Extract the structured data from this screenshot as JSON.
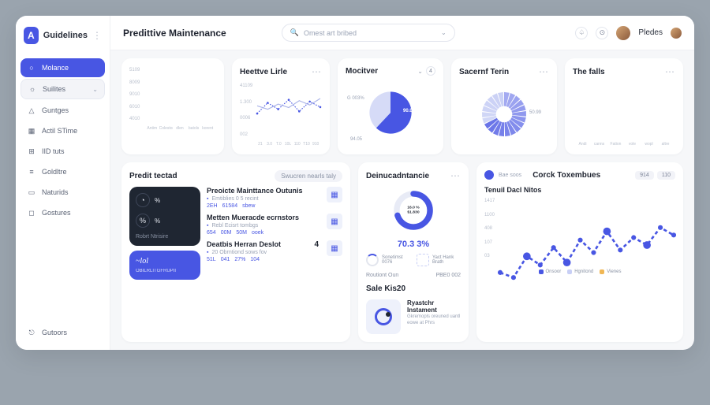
{
  "brand": {
    "name": "Guidelines",
    "logo_letter": "A"
  },
  "sidebar": {
    "items": [
      {
        "label": "Molance",
        "icon": "circle",
        "active": true
      },
      {
        "label": "Suilites",
        "icon": "sun",
        "sub": true,
        "chevron": true
      },
      {
        "label": "Guntges",
        "icon": "triangle"
      },
      {
        "label": "Actil STime",
        "icon": "calendar"
      },
      {
        "label": "IID tuts",
        "icon": "grid"
      },
      {
        "label": "Goldltre",
        "icon": "layers"
      },
      {
        "label": "Naturids",
        "icon": "doc"
      },
      {
        "label": "Gostures",
        "icon": "box"
      }
    ],
    "bottom": {
      "label": "Gutoors",
      "icon": "exit"
    }
  },
  "header": {
    "title": "Predittive Maintenance",
    "search_placeholder": "Omest art bribed",
    "user_name": "Pledes"
  },
  "row1": {
    "bar_card": {
      "y_ticks": [
        "5109",
        "8009",
        "9010",
        "6010",
        "4010"
      ],
      "x_labels": [
        "Antim",
        "Colestone",
        "dlen",
        "batols",
        "korent"
      ],
      "pairs": [
        {
          "a": 70,
          "b": 88
        },
        {
          "a": 42,
          "b": 95
        },
        {
          "a": 55,
          "b": 50
        },
        {
          "a": 62,
          "b": 78
        },
        {
          "a": 48,
          "b": 60
        }
      ],
      "color_a": "#c8cff5",
      "color_b": "#4856e3"
    },
    "line_card": {
      "title": "Heettve Lirle",
      "y_ticks": [
        "41109",
        "1.300",
        "0006",
        "002"
      ],
      "x_labels": [
        "21",
        "3.0",
        "T.0",
        "10L",
        "110",
        "T10",
        "910"
      ],
      "series1": [
        30,
        55,
        40,
        62,
        35,
        58,
        45
      ],
      "series2": [
        48,
        40,
        52,
        44,
        60,
        50,
        65
      ],
      "color1": "#4856e3",
      "color2": "#aab3e8"
    },
    "pie1": {
      "title": "Mocitver",
      "slices": [
        {
          "value": 62,
          "color": "#4856e3"
        },
        {
          "value": 38,
          "color": "#d6dbf7"
        }
      ],
      "labels": [
        "G 003%",
        "90.0%",
        "94.05"
      ]
    },
    "pie2": {
      "title": "Sacernf Terin",
      "segments": 22,
      "color_main": "#4856e3",
      "color_alt": "#c8cff5",
      "label": "50.99"
    },
    "bar2": {
      "title": "The falls",
      "x_labels": [
        "Andi",
        "canns",
        "Fation",
        "vole",
        "wopl",
        "altre"
      ],
      "pairs": [
        {
          "a": 85,
          "b": 55
        },
        {
          "a": 50,
          "b": 75
        },
        {
          "a": 40,
          "b": 30
        },
        {
          "a": 90,
          "b": 62
        },
        {
          "a": 58,
          "b": 48
        },
        {
          "a": 45,
          "b": 70
        }
      ],
      "color_a": "#4856e3",
      "color_b": "#c8cff5"
    }
  },
  "row2": {
    "predict": {
      "title": "Predit tectad",
      "pill": "Swucren nearls taly",
      "dark": {
        "rows": [
          {
            "icon": "gauge",
            "val": "%"
          },
          {
            "icon": "percent",
            "val": "%"
          }
        ],
        "sub": "Robrt Ntrisire"
      },
      "blue": {
        "handwrite": "~lol",
        "sub": "OBILRLITGFRUPII"
      },
      "list": [
        {
          "title": "Preoicte Mainttance Outunis",
          "sub": "Emtiblies 0 5 recint",
          "meta": [
            "2EH",
            "61584",
            "sbew"
          ],
          "icon": "building"
        },
        {
          "title": "Metten Mueracde ecrnstors",
          "sub": "Rebl Ecisrt tombgs",
          "meta": [
            "654",
            "00M",
            "50M",
            "ooek"
          ],
          "icon": "users"
        },
        {
          "title": "Deatbis Herran Deslot",
          "sub": "20 Obrntiond sows fov",
          "meta": [
            "51L",
            "041",
            "27%",
            "104"
          ],
          "icon": "grid",
          "num": "4"
        }
      ]
    },
    "donut": {
      "title": "Deinucadntancie",
      "center_top": "16.0 %",
      "center_val": "$1.830",
      "pct": "70.3 3%",
      "value": 70,
      "color": "#4856e3",
      "track": "#e8ebf6",
      "stats": [
        {
          "label": "Sonetimst",
          "sub": "0076"
        },
        {
          "label": "Yact Hank",
          "sub": "Brath"
        }
      ],
      "footer_l": "Routiont Oun",
      "footer_r": "PBE0 002"
    },
    "sale": {
      "title": "Sale Kis20",
      "block_title": "Ryastchr Instament",
      "block_sub": "Gkremopls oreuned uantl eowe at Phrs"
    },
    "combo": {
      "badge_text": "Bae soos",
      "title": "Corck Toxembues",
      "pills": [
        "914",
        "110"
      ],
      "subtitle": "Tenuil Dacl Nitos",
      "y_ticks": [
        "1417",
        "1100",
        "408",
        "107",
        "03"
      ],
      "bars": [
        {
          "a": 35,
          "b": 28
        },
        {
          "a": 48,
          "b": 22
        },
        {
          "a": 30,
          "b": 55
        },
        {
          "a": 62,
          "b": 40
        },
        {
          "a": 38,
          "b": 70
        },
        {
          "a": 52,
          "b": 34
        },
        {
          "a": 44,
          "b": 60
        },
        {
          "a": 70,
          "b": 48
        },
        {
          "a": 56,
          "b": 80
        },
        {
          "a": 48,
          "b": 42
        },
        {
          "a": 64,
          "b": 55
        },
        {
          "a": 40,
          "b": 72
        },
        {
          "a": 58,
          "b": 50
        },
        {
          "a": 50,
          "b": 66
        }
      ],
      "line": [
        42,
        38,
        55,
        48,
        62,
        50,
        68,
        58,
        75,
        60,
        70,
        64,
        78,
        72
      ],
      "color_a": "#4856e3",
      "color_b": "#c8cff5",
      "line_color": "#4856e3",
      "legend": [
        {
          "label": "Onsoor",
          "color": "#4856e3"
        },
        {
          "label": "Hgnitond",
          "color": "#c8cff5"
        },
        {
          "label": "Vienes",
          "color": "#f0b755"
        }
      ]
    }
  }
}
